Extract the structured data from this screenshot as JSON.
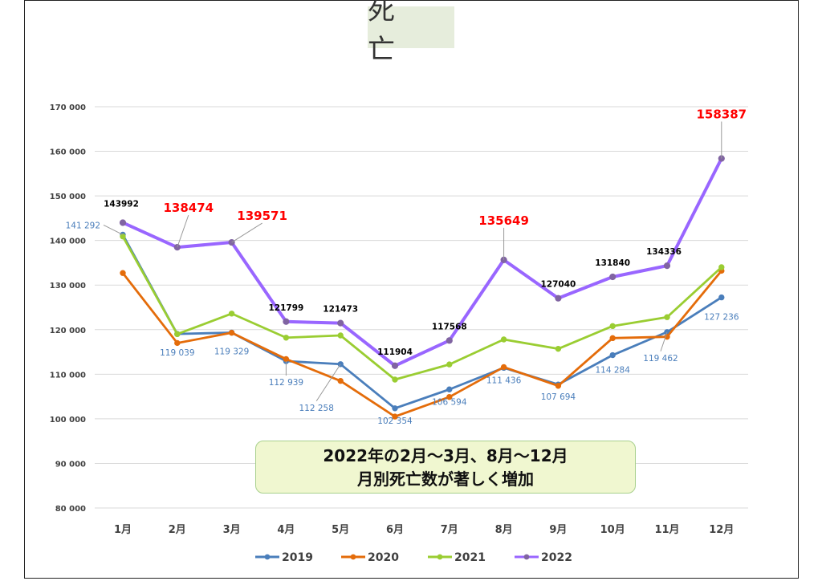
{
  "title": "死　亡",
  "callout": {
    "line1": "2022年の2月～3月、8月～12月",
    "line2": "月別死亡数が著しく増加"
  },
  "chart_data": {
    "type": "line",
    "categories": [
      "1月",
      "2月",
      "3月",
      "4月",
      "5月",
      "6月",
      "7月",
      "8月",
      "9月",
      "10月",
      "11月",
      "12月"
    ],
    "ylim": [
      80000,
      170000
    ],
    "ytick_step": 10000,
    "ytick_labels": [
      "80 000",
      "90 000",
      "100 000",
      "110 000",
      "120 000",
      "130 000",
      "140 000",
      "150 000",
      "160 000",
      "170 000"
    ],
    "grid": true,
    "legend_position": "bottom",
    "series": [
      {
        "name": "2019",
        "color": "#4a7ebb",
        "values": [
          141292,
          119039,
          119329,
          112939,
          112258,
          102354,
          106594,
          111436,
          107694,
          114284,
          119462,
          127236
        ]
      },
      {
        "name": "2020",
        "color": "#e46c0a",
        "values": [
          132700,
          117000,
          119300,
          113400,
          108500,
          100500,
          104900,
          111600,
          107400,
          118100,
          118400,
          133200
        ]
      },
      {
        "name": "2021",
        "color": "#9acd32",
        "values": [
          140900,
          119000,
          123600,
          118200,
          118700,
          108800,
          112200,
          117800,
          115700,
          120800,
          122800,
          134000
        ]
      },
      {
        "name": "2022",
        "color": "#9966ff",
        "values": [
          143992,
          138474,
          139571,
          121799,
          121473,
          111904,
          117568,
          135649,
          127040,
          131840,
          134336,
          158387
        ]
      }
    ],
    "labels_2019": [
      "141 292",
      "119 039",
      "119 329",
      "112 939",
      "112 258",
      "102 354",
      "106 594",
      "111 436",
      "107 694",
      "114 284",
      "119 462",
      "127 236"
    ],
    "labels_2022": [
      "143992",
      "138474",
      "139571",
      "121799",
      "121473",
      "111904",
      "117568",
      "135649",
      "127040",
      "131840",
      "134336",
      "158387"
    ],
    "highlight_2022": [
      false,
      true,
      true,
      false,
      false,
      false,
      false,
      true,
      false,
      false,
      false,
      true
    ]
  }
}
